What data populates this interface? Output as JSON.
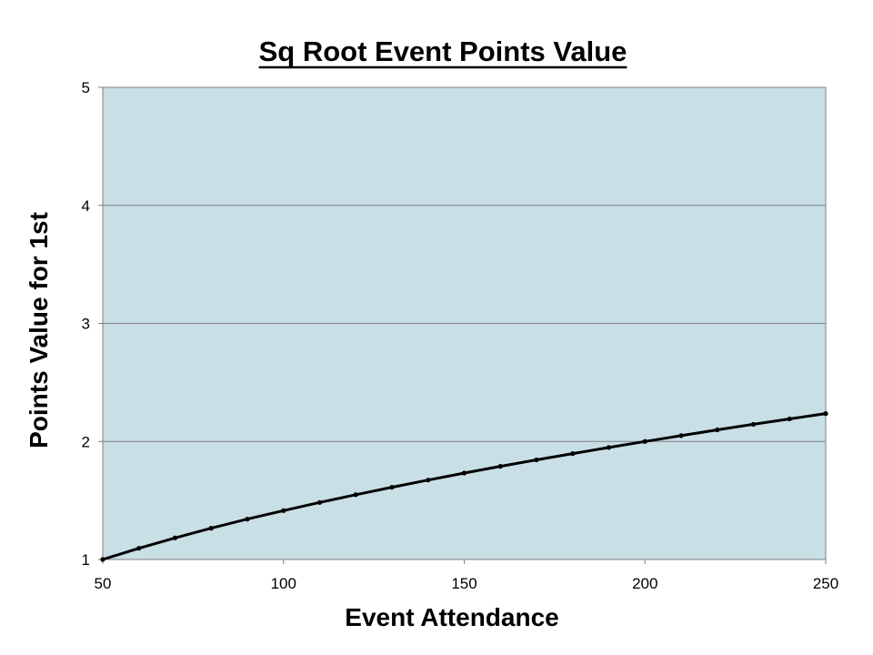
{
  "chart_data": {
    "type": "line",
    "title": "Sq Root Event Points Value",
    "xlabel": "Event Attendance",
    "ylabel": "Points Value for 1st",
    "xlim": [
      50,
      250
    ],
    "ylim": [
      1,
      5
    ],
    "x_ticks": [
      "50",
      "100",
      "150",
      "200",
      "250"
    ],
    "y_ticks": [
      "1",
      "2",
      "3",
      "4",
      "5"
    ],
    "grid": "horizontal",
    "legend": "none",
    "plot_background": "#c9dfe6",
    "line_color": "#000000",
    "series": [
      {
        "x": [
          50,
          60,
          70,
          80,
          90,
          100,
          110,
          120,
          130,
          140,
          150,
          160,
          170,
          180,
          190,
          200,
          210,
          220,
          230,
          240,
          250
        ],
        "values": [
          1.0,
          1.095,
          1.183,
          1.265,
          1.342,
          1.414,
          1.483,
          1.549,
          1.612,
          1.673,
          1.732,
          1.789,
          1.844,
          1.897,
          1.949,
          2.0,
          2.049,
          2.098,
          2.145,
          2.191,
          2.236
        ]
      }
    ]
  }
}
